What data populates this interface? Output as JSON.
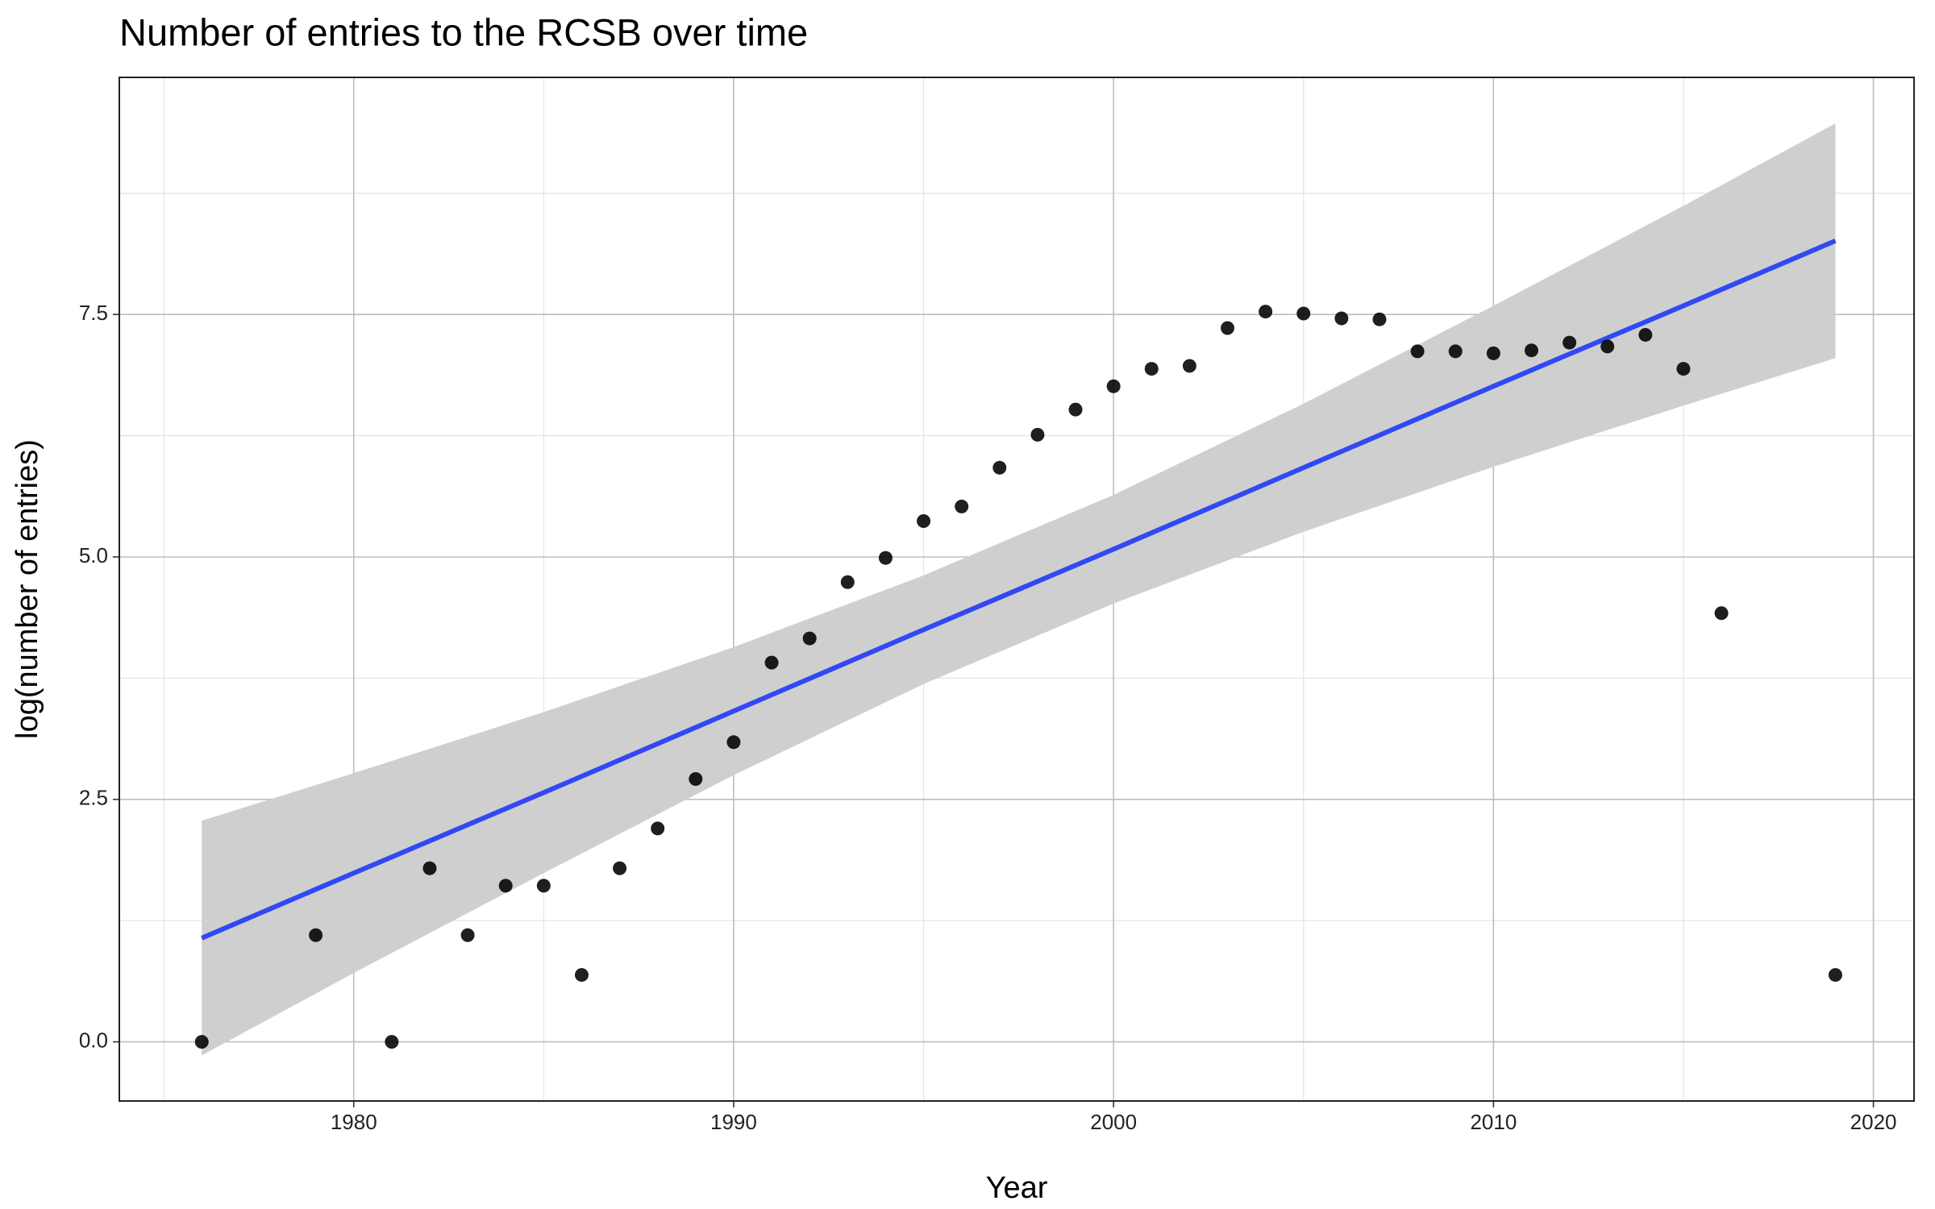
{
  "chart_data": {
    "type": "scatter",
    "title": "Number of entries to the RCSB over time",
    "x_label": "Year",
    "y_label": "log(number of entries)",
    "xlim": [
      1973.83,
      2021.07
    ],
    "ylim": [
      -0.61,
      9.945
    ],
    "xticks": [
      1980,
      1990,
      2000,
      2010,
      2020
    ],
    "yticks": [
      {
        "value": 0,
        "label": "0.0"
      },
      2.5,
      {
        "value": 5,
        "label": "5.0"
      },
      7.5
    ],
    "x_minor_grid": [
      1975,
      1985,
      1995,
      2005,
      2015
    ],
    "y_minor_grid": [
      1.25,
      3.75,
      6.25,
      8.75
    ],
    "grid": true,
    "series": [
      {
        "color": "#000000",
        "x": [
          1976,
          1979,
          1981,
          1982,
          1983,
          1984,
          1985,
          1986,
          1987,
          1988,
          1989,
          1990,
          1991,
          1992,
          1993,
          1994,
          1995,
          1996,
          1997,
          1998,
          1999,
          2000,
          2001,
          2002,
          2003,
          2004,
          2005,
          2006,
          2007,
          2008,
          2009,
          2010,
          2011,
          2012,
          2013,
          2014,
          2015,
          2016,
          2019
        ],
        "values": [
          0,
          1.1,
          0,
          1.79,
          1.1,
          1.61,
          1.61,
          0.69,
          1.79,
          2.2,
          2.71,
          3.09,
          3.91,
          4.16,
          4.74,
          4.99,
          5.37,
          5.52,
          5.92,
          6.26,
          6.52,
          6.76,
          6.94,
          6.97,
          7.36,
          7.53,
          7.51,
          7.46,
          7.45,
          7.12,
          7.12,
          7.1,
          7.13,
          7.21,
          7.17,
          7.29,
          6.94,
          4.42,
          0.69
        ]
      }
    ],
    "smooth": {
      "color": "#3049f2",
      "band_color": "#cfcfcf",
      "x": [
        1976,
        1980,
        1985,
        1990,
        1995,
        2000,
        2005,
        2010,
        2015,
        2019
      ],
      "values": [
        1.07,
        1.74,
        2.57,
        3.41,
        4.25,
        5.08,
        5.92,
        6.76,
        7.59,
        8.26
      ],
      "lower": [
        -0.14,
        0.71,
        1.74,
        2.75,
        3.69,
        4.52,
        5.26,
        5.93,
        6.56,
        7.05
      ],
      "upper": [
        2.28,
        2.77,
        3.4,
        4.07,
        4.81,
        5.64,
        6.58,
        7.59,
        8.62,
        9.47
      ]
    }
  }
}
